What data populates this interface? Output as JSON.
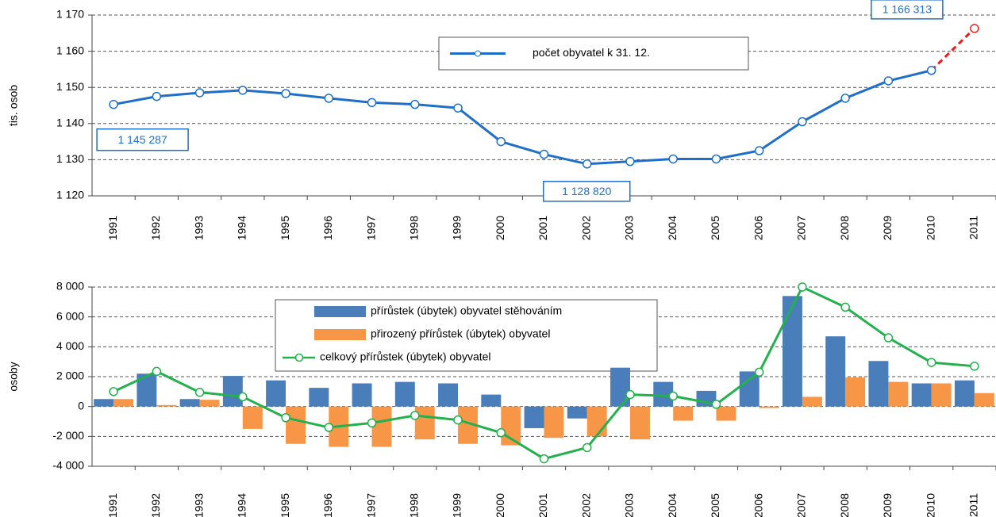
{
  "chart_data": [
    {
      "type": "line",
      "y_label": "tis. osob",
      "categories": [
        "1991",
        "1992",
        "1993",
        "1994",
        "1995",
        "1996",
        "1997",
        "1998",
        "1999",
        "2000",
        "2001",
        "2002",
        "2003",
        "2004",
        "2005",
        "2006",
        "2007",
        "2008",
        "2009",
        "2010",
        "2011"
      ],
      "series": [
        {
          "name": "počet obyvatel k 31. 12.",
          "color": "#1f6fc8",
          "values": [
            1145.287,
            1147.5,
            1148.5,
            1149.2,
            1148.3,
            1147,
            1145.8,
            1145.3,
            1144.3,
            1135,
            1131.5,
            1128.82,
            1129.5,
            1130.2,
            1130.2,
            1132.5,
            1140.5,
            1147,
            1151.8,
            1154.7,
            1166.313
          ],
          "value_labels": [
            "1 145 287",
            null,
            null,
            null,
            null,
            null,
            null,
            null,
            null,
            null,
            null,
            "1 128 820",
            null,
            null,
            null,
            null,
            null,
            null,
            null,
            null,
            "1 166 313"
          ],
          "last_segment_color": "#ee1c1c",
          "last_segment_dashed": true
        }
      ],
      "ylim": [
        1120,
        1170
      ],
      "yticks": [
        {
          "value": 1120,
          "label": "1 120"
        },
        {
          "value": 1130,
          "label": "1 130"
        },
        {
          "value": 1140,
          "label": "1 140"
        },
        {
          "value": 1150,
          "label": "1 150"
        },
        {
          "value": 1160,
          "label": "1 160"
        },
        {
          "value": 1170,
          "label": "1 170"
        }
      ],
      "grid": true
    },
    {
      "type": "bar",
      "y_label": "osoby",
      "categories": [
        "1991",
        "1992",
        "1993",
        "1994",
        "1995",
        "1996",
        "1997",
        "1998",
        "1999",
        "2000",
        "2001",
        "2002",
        "2003",
        "2004",
        "2005",
        "2006",
        "2007",
        "2008",
        "2009",
        "2010",
        "2011"
      ],
      "series": [
        {
          "name": "přírůstek (úbytek) obyvatel stěhováním",
          "color": "#4a7ebb",
          "type": "bar",
          "values": [
            500,
            2200,
            500,
            2050,
            1750,
            1250,
            1550,
            1650,
            1550,
            800,
            -1450,
            -800,
            2600,
            1650,
            1050,
            2350,
            7400,
            4700,
            3050,
            1550,
            1750
          ]
        },
        {
          "name": "přirozený přírůstek (úbytek) obyvatel",
          "color": "#f79646",
          "type": "bar",
          "values": [
            500,
            100,
            450,
            -1500,
            -2500,
            -2700,
            -2700,
            -2200,
            -2500,
            -2600,
            -2100,
            -2000,
            -2200,
            -950,
            -950,
            -100,
            650,
            1950,
            1650,
            1550,
            900
          ]
        },
        {
          "name": "celkový přírůstek (úbytek) obyvatel",
          "color": "#22b14c",
          "type": "line",
          "values": [
            1000,
            2350,
            950,
            650,
            -750,
            -1400,
            -1100,
            -600,
            -900,
            -1750,
            -3500,
            -2750,
            800,
            700,
            150,
            2300,
            8000,
            6650,
            4600,
            2950,
            2700
          ]
        }
      ],
      "ylim": [
        -4000,
        8000
      ],
      "yticks": [
        {
          "value": -4000,
          "label": "-4 000"
        },
        {
          "value": -2000,
          "label": "-2 000"
        },
        0,
        {
          "value": 2000,
          "label": "2 000"
        },
        {
          "value": 4000,
          "label": "4 000"
        },
        {
          "value": 6000,
          "label": "6 000"
        },
        {
          "value": 8000,
          "label": "8 000"
        }
      ],
      "grid": true
    }
  ]
}
